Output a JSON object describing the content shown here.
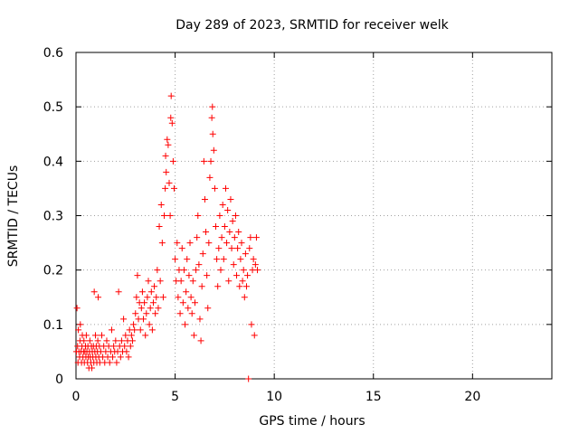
{
  "chart_data": {
    "type": "scatter",
    "title": "Day 289 of 2023, SRMTID for receiver welk",
    "xlabel": "GPS time / hours",
    "ylabel": "SRMTID / TECUs",
    "xlim": [
      0,
      24
    ],
    "ylim": [
      0,
      0.6
    ],
    "xticks": [
      "0",
      "5",
      "10",
      "15",
      "20"
    ],
    "xtick_values": [
      0,
      5,
      10,
      15,
      20
    ],
    "yticks": [
      "0",
      "0.1",
      "0.2",
      "0.3",
      "0.4",
      "0.5",
      "0.6"
    ],
    "ytick_values": [
      0,
      0.1,
      0.2,
      0.3,
      0.4,
      0.5,
      0.6
    ],
    "grid": true,
    "color": "#ff0000",
    "series": [
      {
        "name": "SRMTID",
        "marker": "plus",
        "points": [
          [
            0.02,
            0.05
          ],
          [
            0.05,
            0.13
          ],
          [
            0.08,
            0.06
          ],
          [
            0.1,
            0.03
          ],
          [
            0.12,
            0.09
          ],
          [
            0.15,
            0.05
          ],
          [
            0.18,
            0.04
          ],
          [
            0.2,
            0.07
          ],
          [
            0.22,
            0.1
          ],
          [
            0.25,
            0.05
          ],
          [
            0.28,
            0.03
          ],
          [
            0.3,
            0.06
          ],
          [
            0.32,
            0.08
          ],
          [
            0.35,
            0.04
          ],
          [
            0.38,
            0.05
          ],
          [
            0.4,
            0.07
          ],
          [
            0.42,
            0.03
          ],
          [
            0.45,
            0.05
          ],
          [
            0.48,
            0.06
          ],
          [
            0.5,
            0.04
          ],
          [
            0.52,
            0.08
          ],
          [
            0.55,
            0.05
          ],
          [
            0.58,
            0.03
          ],
          [
            0.6,
            0.06
          ],
          [
            0.62,
            0.04
          ],
          [
            0.65,
            0.02
          ],
          [
            0.68,
            0.05
          ],
          [
            0.7,
            0.07
          ],
          [
            0.72,
            0.04
          ],
          [
            0.75,
            0.03
          ],
          [
            0.78,
            0.06
          ],
          [
            0.8,
            0.02
          ],
          [
            0.82,
            0.05
          ],
          [
            0.85,
            0.04
          ],
          [
            0.88,
            0.06
          ],
          [
            0.9,
            0.03
          ],
          [
            0.92,
            0.16
          ],
          [
            0.95,
            0.05
          ],
          [
            0.98,
            0.08
          ],
          [
            1.0,
            0.04
          ],
          [
            1.02,
            0.06
          ],
          [
            1.05,
            0.03
          ],
          [
            1.08,
            0.05
          ],
          [
            1.1,
            0.07
          ],
          [
            1.12,
            0.15
          ],
          [
            1.15,
            0.04
          ],
          [
            1.18,
            0.06
          ],
          [
            1.2,
            0.03
          ],
          [
            1.25,
            0.05
          ],
          [
            1.3,
            0.08
          ],
          [
            1.35,
            0.04
          ],
          [
            1.4,
            0.06
          ],
          [
            1.45,
            0.03
          ],
          [
            1.5,
            0.05
          ],
          [
            1.55,
            0.07
          ],
          [
            1.6,
            0.04
          ],
          [
            1.65,
            0.06
          ],
          [
            1.7,
            0.03
          ],
          [
            1.75,
            0.05
          ],
          [
            1.8,
            0.09
          ],
          [
            1.85,
            0.04
          ],
          [
            1.9,
            0.06
          ],
          [
            1.95,
            0.05
          ],
          [
            2.0,
            0.07
          ],
          [
            2.05,
            0.03
          ],
          [
            2.1,
            0.05
          ],
          [
            2.15,
            0.16
          ],
          [
            2.2,
            0.06
          ],
          [
            2.25,
            0.04
          ],
          [
            2.3,
            0.07
          ],
          [
            2.35,
            0.05
          ],
          [
            2.4,
            0.11
          ],
          [
            2.45,
            0.06
          ],
          [
            2.5,
            0.08
          ],
          [
            2.55,
            0.05
          ],
          [
            2.6,
            0.07
          ],
          [
            2.65,
            0.04
          ],
          [
            2.7,
            0.09
          ],
          [
            2.75,
            0.06
          ],
          [
            2.8,
            0.08
          ],
          [
            2.85,
            0.07
          ],
          [
            2.9,
            0.1
          ],
          [
            2.95,
            0.09
          ],
          [
            3.0,
            0.12
          ],
          [
            3.05,
            0.15
          ],
          [
            3.1,
            0.19
          ],
          [
            3.15,
            0.11
          ],
          [
            3.2,
            0.14
          ],
          [
            3.25,
            0.09
          ],
          [
            3.3,
            0.13
          ],
          [
            3.35,
            0.16
          ],
          [
            3.4,
            0.11
          ],
          [
            3.45,
            0.14
          ],
          [
            3.5,
            0.08
          ],
          [
            3.55,
            0.12
          ],
          [
            3.6,
            0.15
          ],
          [
            3.65,
            0.18
          ],
          [
            3.7,
            0.1
          ],
          [
            3.75,
            0.13
          ],
          [
            3.8,
            0.16
          ],
          [
            3.85,
            0.09
          ],
          [
            3.9,
            0.14
          ],
          [
            3.95,
            0.17
          ],
          [
            4.0,
            0.12
          ],
          [
            4.05,
            0.15
          ],
          [
            4.1,
            0.2
          ],
          [
            4.15,
            0.13
          ],
          [
            4.2,
            0.28
          ],
          [
            4.25,
            0.18
          ],
          [
            4.3,
            0.32
          ],
          [
            4.35,
            0.25
          ],
          [
            4.4,
            0.15
          ],
          [
            4.45,
            0.3
          ],
          [
            4.5,
            0.35
          ],
          [
            4.52,
            0.41
          ],
          [
            4.55,
            0.38
          ],
          [
            4.6,
            0.44
          ],
          [
            4.65,
            0.43
          ],
          [
            4.7,
            0.36
          ],
          [
            4.75,
            0.3
          ],
          [
            4.78,
            0.48
          ],
          [
            4.8,
            0.52
          ],
          [
            4.85,
            0.47
          ],
          [
            4.9,
            0.4
          ],
          [
            4.95,
            0.35
          ],
          [
            5.0,
            0.22
          ],
          [
            5.05,
            0.18
          ],
          [
            5.1,
            0.25
          ],
          [
            5.15,
            0.15
          ],
          [
            5.2,
            0.2
          ],
          [
            5.25,
            0.12
          ],
          [
            5.3,
            0.18
          ],
          [
            5.35,
            0.24
          ],
          [
            5.4,
            0.14
          ],
          [
            5.45,
            0.2
          ],
          [
            5.5,
            0.1
          ],
          [
            5.55,
            0.16
          ],
          [
            5.6,
            0.22
          ],
          [
            5.65,
            0.13
          ],
          [
            5.7,
            0.19
          ],
          [
            5.75,
            0.25
          ],
          [
            5.8,
            0.15
          ],
          [
            5.85,
            0.12
          ],
          [
            5.9,
            0.18
          ],
          [
            5.95,
            0.08
          ],
          [
            6.0,
            0.14
          ],
          [
            6.05,
            0.2
          ],
          [
            6.1,
            0.26
          ],
          [
            6.15,
            0.3
          ],
          [
            6.2,
            0.21
          ],
          [
            6.25,
            0.11
          ],
          [
            6.3,
            0.07
          ],
          [
            6.35,
            0.17
          ],
          [
            6.4,
            0.23
          ],
          [
            6.45,
            0.4
          ],
          [
            6.5,
            0.33
          ],
          [
            6.55,
            0.27
          ],
          [
            6.6,
            0.19
          ],
          [
            6.65,
            0.13
          ],
          [
            6.7,
            0.25
          ],
          [
            6.75,
            0.37
          ],
          [
            6.8,
            0.4
          ],
          [
            6.85,
            0.48
          ],
          [
            6.88,
            0.5
          ],
          [
            6.9,
            0.45
          ],
          [
            6.95,
            0.42
          ],
          [
            7.0,
            0.35
          ],
          [
            7.05,
            0.28
          ],
          [
            7.1,
            0.22
          ],
          [
            7.15,
            0.17
          ],
          [
            7.2,
            0.24
          ],
          [
            7.25,
            0.3
          ],
          [
            7.3,
            0.2
          ],
          [
            7.35,
            0.26
          ],
          [
            7.4,
            0.32
          ],
          [
            7.45,
            0.22
          ],
          [
            7.5,
            0.28
          ],
          [
            7.55,
            0.35
          ],
          [
            7.6,
            0.25
          ],
          [
            7.65,
            0.31
          ],
          [
            7.7,
            0.18
          ],
          [
            7.75,
            0.27
          ],
          [
            7.8,
            0.33
          ],
          [
            7.85,
            0.24
          ],
          [
            7.9,
            0.29
          ],
          [
            7.95,
            0.21
          ],
          [
            8.0,
            0.26
          ],
          [
            8.05,
            0.3
          ],
          [
            8.1,
            0.19
          ],
          [
            8.15,
            0.24
          ],
          [
            8.2,
            0.27
          ],
          [
            8.25,
            0.17
          ],
          [
            8.3,
            0.22
          ],
          [
            8.35,
            0.25
          ],
          [
            8.4,
            0.18
          ],
          [
            8.45,
            0.2
          ],
          [
            8.5,
            0.15
          ],
          [
            8.55,
            0.23
          ],
          [
            8.6,
            0.17
          ],
          [
            8.65,
            0.19
          ],
          [
            8.7,
            0.0
          ],
          [
            8.75,
            0.24
          ],
          [
            8.8,
            0.26
          ],
          [
            8.85,
            0.1
          ],
          [
            8.9,
            0.2
          ],
          [
            8.95,
            0.22
          ],
          [
            9.0,
            0.08
          ],
          [
            9.05,
            0.21
          ],
          [
            9.1,
            0.26
          ],
          [
            9.15,
            0.2
          ]
        ]
      }
    ]
  }
}
